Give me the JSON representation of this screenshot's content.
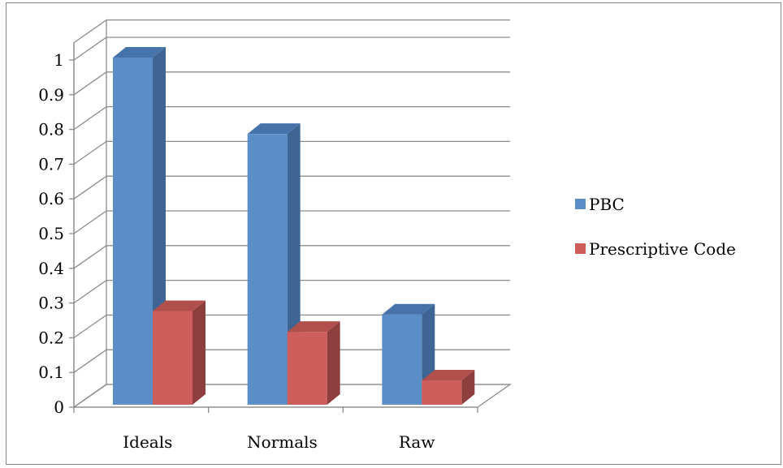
{
  "chart_data": {
    "type": "bar",
    "categories": [
      "Ideals",
      "Normals",
      "Raw"
    ],
    "series": [
      {
        "name": "PBC",
        "values": [
          1.0,
          0.78,
          0.26
        ],
        "color": "#5B8EC7",
        "side": "#3F6595",
        "top": "#4673AA"
      },
      {
        "name": "Prescriptive Code",
        "values": [
          0.27,
          0.21,
          0.07
        ],
        "color": "#CD5E5B",
        "side": "#8E3F3D",
        "top": "#B04F4C"
      }
    ],
    "yticks": [
      "0",
      "0.1",
      "0.2",
      "0.3",
      "0.4",
      "0.5",
      "0.6",
      "0.7",
      "0.8",
      "0.9",
      "1"
    ],
    "ylim": [
      0,
      1.05
    ],
    "grid": true,
    "legend_position": "right",
    "three_d": true
  }
}
